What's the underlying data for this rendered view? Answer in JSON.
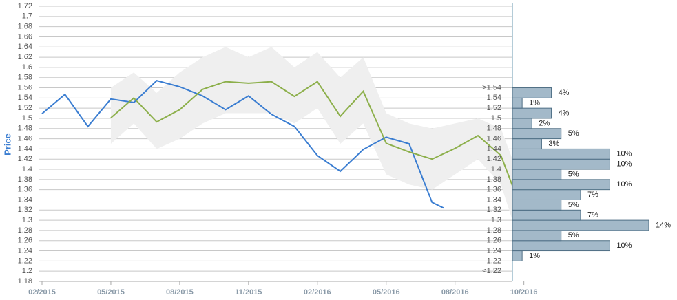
{
  "chart_data": [
    {
      "type": "line",
      "y_label": "Price",
      "xlim": [
        -0.12,
        20.5
      ],
      "ylim": [
        1.18,
        1.72
      ],
      "xticks": [
        {
          "value": 0,
          "label": "02/2015"
        },
        {
          "value": 3,
          "label": "05/2015"
        },
        {
          "value": 6,
          "label": "08/2015"
        },
        {
          "value": 9,
          "label": "11/2015"
        },
        {
          "value": 12,
          "label": "02/2016"
        },
        {
          "value": 15,
          "label": "05/2016"
        },
        {
          "value": 18,
          "label": "08/2016"
        },
        {
          "value": 21,
          "label": "10/2016"
        }
      ],
      "yticks": [
        1.18,
        1.2,
        1.22,
        1.24,
        1.26,
        1.28,
        1.3,
        1.32,
        1.34,
        1.36,
        1.38,
        1.4,
        1.42,
        1.44,
        1.46,
        1.48,
        1.5,
        1.52,
        1.54,
        1.56,
        1.58,
        1.6,
        1.62,
        1.64,
        1.66,
        1.68,
        1.7,
        1.72
      ],
      "grid": true,
      "band": {
        "color": "#efefef",
        "x": [
          3,
          4,
          5,
          6,
          7,
          8,
          9,
          10,
          11,
          12,
          13,
          14,
          15,
          16,
          17,
          18,
          19,
          20,
          20.5
        ],
        "upper": [
          1.56,
          1.59,
          1.55,
          1.59,
          1.62,
          1.64,
          1.62,
          1.64,
          1.6,
          1.63,
          1.58,
          1.62,
          1.51,
          1.49,
          1.48,
          1.49,
          1.5,
          1.48,
          1.42
        ],
        "lower": [
          1.45,
          1.49,
          1.44,
          1.46,
          1.49,
          1.51,
          1.51,
          1.51,
          1.49,
          1.52,
          1.45,
          1.49,
          1.39,
          1.37,
          1.36,
          1.39,
          1.42,
          1.37,
          1.3
        ]
      },
      "series": [
        {
          "color": "#3a7dd1",
          "x": [
            0,
            1,
            2,
            3,
            4,
            5,
            6,
            7,
            8,
            9,
            10,
            11,
            12,
            13,
            14,
            15,
            16,
            17,
            17.5
          ],
          "values": [
            1.509,
            1.547,
            1.484,
            1.538,
            1.531,
            1.574,
            1.562,
            1.544,
            1.517,
            1.544,
            1.508,
            1.484,
            1.427,
            1.396,
            1.439,
            1.463,
            1.45,
            1.335,
            1.324
          ]
        },
        {
          "color": "#8caf4a",
          "x": [
            3,
            4,
            5,
            6,
            7,
            8,
            9,
            10,
            11,
            12,
            13,
            14,
            15,
            16,
            17,
            18,
            19,
            20,
            20.5
          ],
          "values": [
            1.501,
            1.54,
            1.493,
            1.517,
            1.557,
            1.572,
            1.569,
            1.572,
            1.543,
            1.572,
            1.504,
            1.553,
            1.451,
            1.434,
            1.42,
            1.441,
            1.466,
            1.427,
            1.368
          ]
        }
      ]
    },
    {
      "type": "histogram",
      "orientation": "horizontal",
      "color": "#a3b9c9",
      "bins": [
        1.22,
        1.24,
        1.26,
        1.28,
        1.3,
        1.32,
        1.34,
        1.36,
        1.38,
        1.4,
        1.42,
        1.44,
        1.46,
        1.48,
        1.5,
        1.52,
        1.54,
        1.56
      ],
      "values": [
        1,
        10,
        5,
        14,
        7,
        5,
        7,
        10,
        5,
        10,
        10,
        3,
        5,
        2,
        4,
        1,
        4
      ],
      "value_labels": [
        "1%",
        "10%",
        "5%",
        "14%",
        "7%",
        "5%",
        "7%",
        "10%",
        "5%",
        "10%",
        "10%",
        "3%",
        "5%",
        "2%",
        "4%",
        "1%",
        "4%"
      ],
      "xlim": [
        0,
        14
      ],
      "yticks": [
        {
          "value": 1.56,
          "label": ">1.54"
        },
        1.54,
        1.52,
        1.5,
        1.48,
        1.46,
        1.44,
        1.42,
        1.4,
        1.38,
        1.36,
        1.34,
        1.32,
        1.3,
        1.28,
        1.26,
        1.24,
        1.22,
        {
          "value": 1.2,
          "label": "<1.22"
        }
      ]
    }
  ]
}
